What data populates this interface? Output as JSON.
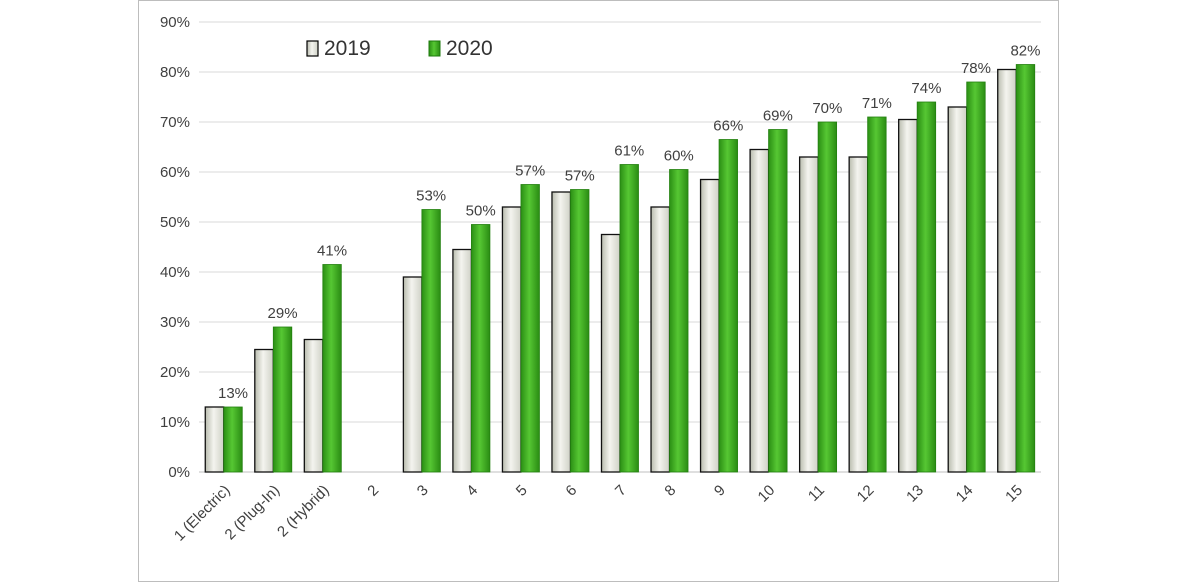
{
  "chart_data": {
    "type": "bar",
    "categories": [
      "1 (Electric)",
      "2 (Plug-In)",
      "2 (Hybrid)",
      "2",
      "3",
      "4",
      "5",
      "6",
      "7",
      "8",
      "9",
      "10",
      "11",
      "12",
      "13",
      "14",
      "15"
    ],
    "series": [
      {
        "name": "2019",
        "values": [
          13,
          24.5,
          26.5,
          null,
          39,
          44.5,
          53,
          56,
          47.5,
          53,
          58.5,
          64.5,
          63,
          63,
          70.5,
          73,
          80.5
        ],
        "color": "#e2e2dc"
      },
      {
        "name": "2020",
        "values": [
          13,
          29,
          41.5,
          null,
          52.5,
          49.5,
          57.5,
          56.5,
          61.5,
          60.5,
          66.5,
          68.5,
          70,
          71,
          74,
          78,
          81.5
        ],
        "color": "#2f9a17"
      }
    ],
    "data_labels_2020": [
      "13%",
      "29%",
      "41%",
      "",
      "53%",
      "50%",
      "57%",
      "57%",
      "61%",
      "60%",
      "66%",
      "69%",
      "70%",
      "71%",
      "74%",
      "78%",
      "82%"
    ],
    "y_ticks": [
      "0%",
      "10%",
      "20%",
      "30%",
      "40%",
      "50%",
      "60%",
      "70%",
      "80%",
      "90%"
    ],
    "ylim": [
      0,
      90
    ],
    "y_unit": "percent",
    "grid": "horizontal",
    "legend": "top-left",
    "legend_labels": [
      "2019",
      "2020"
    ],
    "title": "",
    "xlabel": "",
    "ylabel": ""
  }
}
